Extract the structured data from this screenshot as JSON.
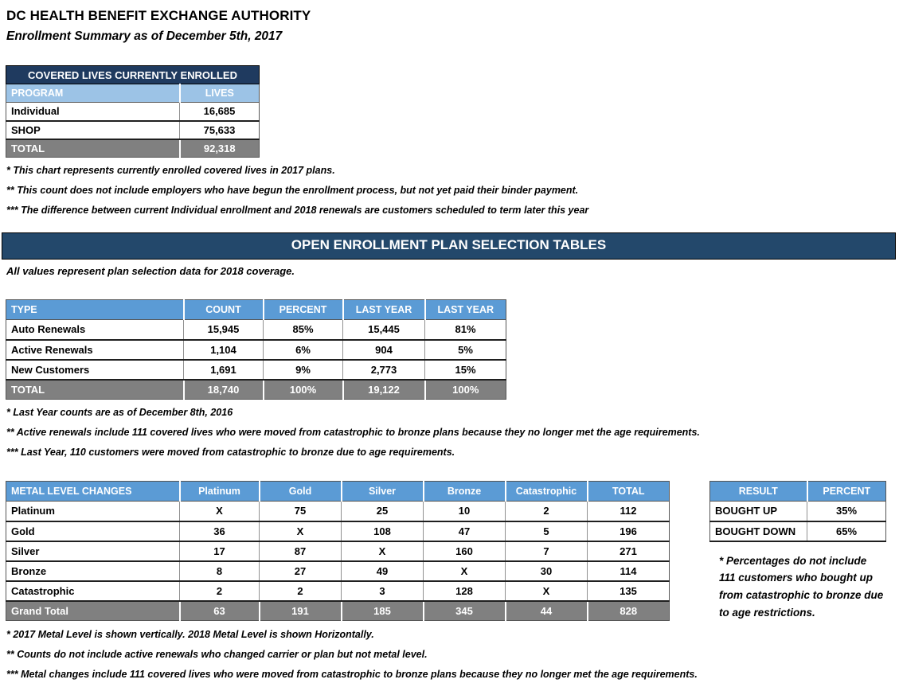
{
  "page": {
    "title": "DC HEALTH BENEFIT EXCHANGE AUTHORITY",
    "subtitle": "Enrollment Summary as of December 5th, 2017"
  },
  "covered_lives": {
    "title": "COVERED LIVES CURRENTLY ENROLLED",
    "columns": [
      "PROGRAM",
      "LIVES"
    ],
    "rows": [
      [
        "Individual",
        "16,685"
      ],
      [
        "SHOP",
        "75,633"
      ]
    ],
    "total_row": [
      "TOTAL",
      "92,318"
    ],
    "notes": [
      "* This chart represents currently enrolled covered lives in 2017 plans.",
      "** This count does not include employers who have begun the enrollment process, but not yet paid their binder payment.",
      "*** The difference between current Individual enrollment and 2018 renewals are customers scheduled to term later this year"
    ]
  },
  "section": {
    "title": "OPEN ENROLLMENT PLAN SELECTION TABLES",
    "subtitle": "All values represent plan selection data for 2018 coverage."
  },
  "plan_selection": {
    "columns": [
      "TYPE",
      "COUNT",
      "PERCENT",
      "LAST YEAR",
      "LAST YEAR"
    ],
    "rows": [
      [
        "Auto Renewals",
        "15,945",
        "85%",
        "15,445",
        "81%"
      ],
      [
        "Active Renewals",
        "1,104",
        "6%",
        "904",
        "5%"
      ],
      [
        "New Customers",
        "1,691",
        "9%",
        "2,773",
        "15%"
      ]
    ],
    "total_row": [
      "TOTAL",
      "18,740",
      "100%",
      "19,122",
      "100%"
    ],
    "notes": [
      "* Last Year counts are as of December 8th, 2016",
      "** Active renewals include 111 covered lives who were moved from catastrophic to bronze plans because they no longer met the age requirements.",
      "*** Last Year, 110 customers were moved from catastrophic to bronze due to age requirements."
    ]
  },
  "metal_changes": {
    "columns": [
      "METAL LEVEL CHANGES",
      "Platinum",
      "Gold",
      "Silver",
      "Bronze",
      "Catastrophic",
      "TOTAL"
    ],
    "rows": [
      [
        "Platinum",
        "X",
        "75",
        "25",
        "10",
        "2",
        "112"
      ],
      [
        "Gold",
        "36",
        "X",
        "108",
        "47",
        "5",
        "196"
      ],
      [
        "Silver",
        "17",
        "87",
        "X",
        "160",
        "7",
        "271"
      ],
      [
        "Bronze",
        "8",
        "27",
        "49",
        "X",
        "30",
        "114"
      ],
      [
        "Catastrophic",
        "2",
        "2",
        "3",
        "128",
        "X",
        "135"
      ]
    ],
    "total_row": [
      "Grand Total",
      "63",
      "191",
      "185",
      "345",
      "44",
      "828"
    ],
    "notes": [
      "* 2017 Metal Level is shown vertically. 2018 Metal Level is shown Horizontally.",
      "** Counts do not include active renewals who changed carrier or plan but not metal level.",
      "*** Metal changes include 111 covered lives who were moved from catastrophic to bronze plans because they no longer met the age requirements."
    ]
  },
  "result": {
    "columns": [
      "RESULT",
      "PERCENT"
    ],
    "rows": [
      [
        "BOUGHT UP",
        "35%"
      ],
      [
        "BOUGHT DOWN",
        "65%"
      ]
    ],
    "note": "* Percentages do not include 111 customers who bought up from catastrophic to bronze due to age restrictions."
  },
  "colors": {
    "navy": "#1F3A5F",
    "section_navy": "#23486B",
    "blue": "#5B9BD5",
    "light_blue": "#9CC3E6",
    "total_gray": "#808080"
  }
}
